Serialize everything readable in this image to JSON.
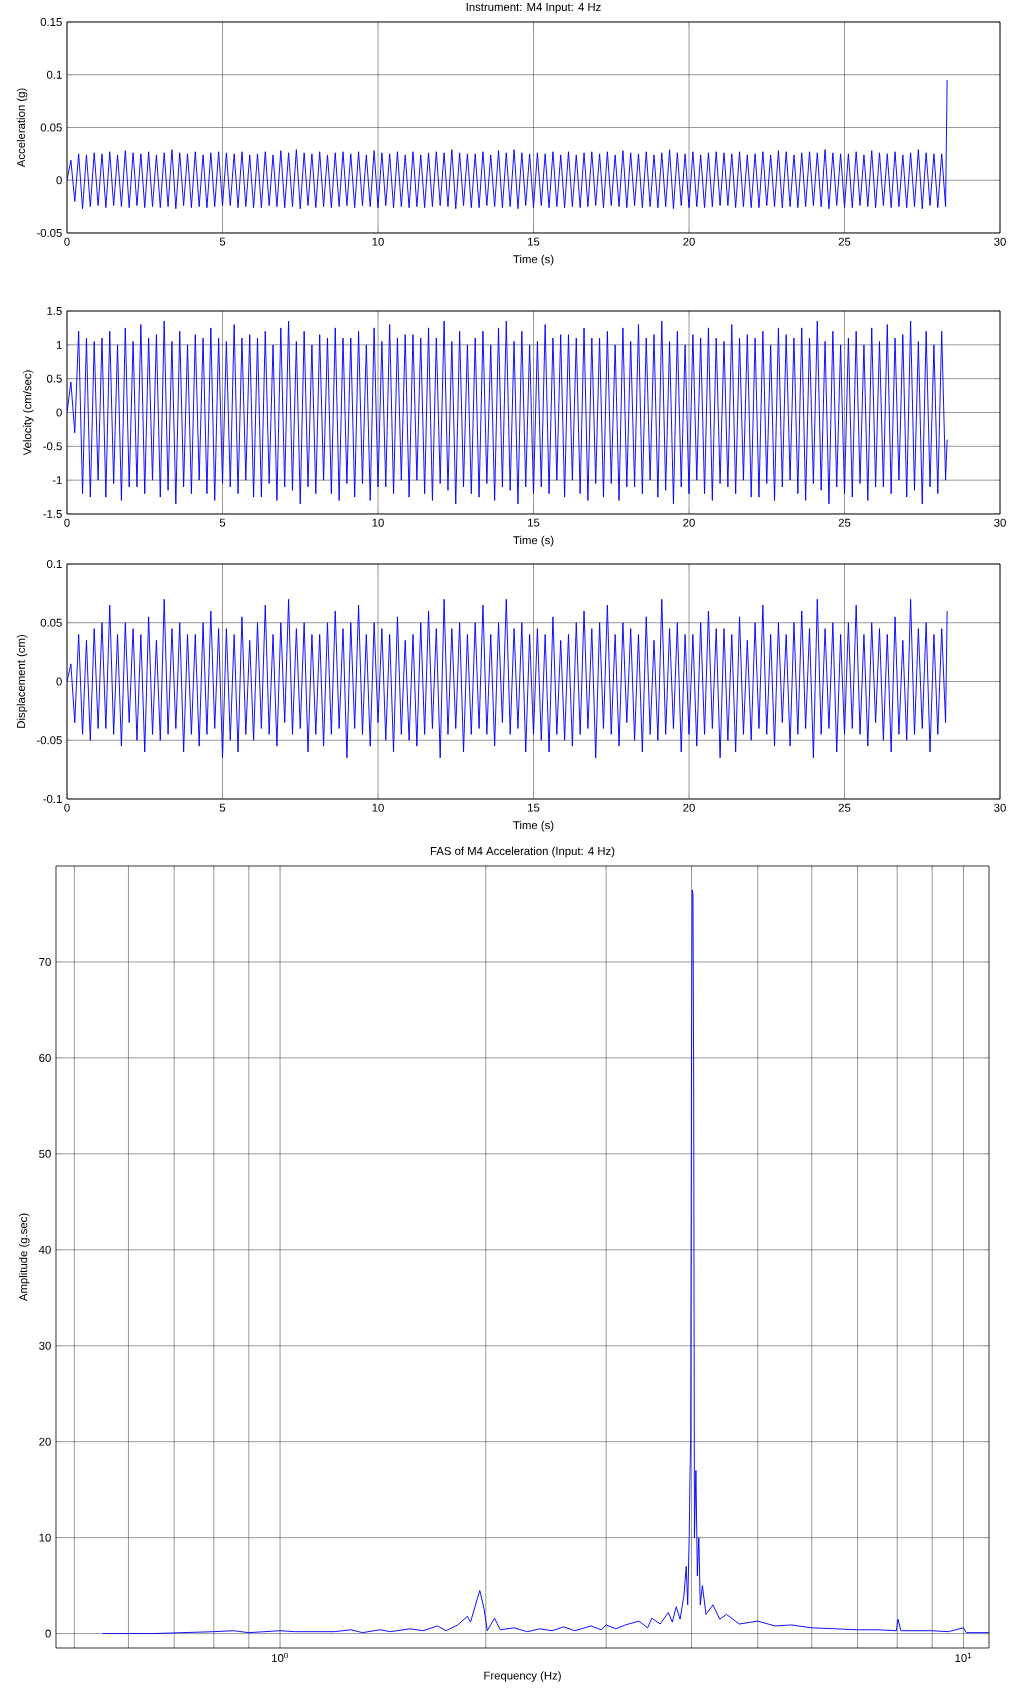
{
  "chart_data": [
    {
      "type": "line",
      "title": "Instrument: M4 Input: 4 Hz",
      "xlabel": "Time (s)",
      "ylabel": "Acceleration (g)",
      "xlim": [
        0,
        30
      ],
      "ylim": [
        -0.05,
        0.15
      ],
      "xticks": [
        0,
        5,
        10,
        15,
        20,
        25,
        30
      ],
      "yticks": [
        -0.05,
        0,
        0.05,
        0.1,
        0.15
      ],
      "grid": true,
      "line_style": "solid",
      "x": [
        0,
        0.125,
        0.25,
        0.375,
        0.5,
        0.625,
        0.75,
        0.875,
        1,
        1.125,
        1.25,
        1.375,
        1.5,
        1.625,
        1.75,
        1.875,
        2,
        2.125,
        2.25,
        2.375,
        2.5,
        2.625,
        2.75,
        2.875,
        3,
        3.125,
        3.25,
        3.375,
        3.5,
        3.625,
        3.75,
        3.875,
        4,
        4.125,
        4.25,
        4.375,
        4.5,
        4.625,
        4.75,
        4.875,
        5,
        5.125,
        5.25,
        5.375,
        5.5,
        5.625,
        5.75,
        5.875,
        6,
        6.125,
        6.25,
        6.375,
        6.5,
        6.625,
        6.75,
        6.875,
        7,
        7.125,
        7.25,
        7.375,
        7.5,
        7.625,
        7.75,
        7.875,
        8,
        8.125,
        8.25,
        8.375,
        8.5,
        8.625,
        8.75,
        8.875,
        9,
        9.125,
        9.25,
        9.375,
        9.5,
        9.625,
        9.75,
        9.875,
        10,
        10.125,
        10.25,
        10.375,
        10.5,
        10.625,
        10.75,
        10.875,
        11,
        11.125,
        11.25,
        11.375,
        11.5,
        11.625,
        11.75,
        11.875,
        12,
        12.125,
        12.25,
        12.375,
        12.5,
        12.625,
        12.75,
        12.875,
        13,
        13.125,
        13.25,
        13.375,
        13.5,
        13.625,
        13.75,
        13.875,
        14,
        14.125,
        14.25,
        14.375,
        14.5,
        14.625,
        14.75,
        14.875,
        15,
        15.125,
        15.25,
        15.375,
        15.5,
        15.625,
        15.75,
        15.875,
        16,
        16.125,
        16.25,
        16.375,
        16.5,
        16.625,
        16.75,
        16.875,
        17,
        17.125,
        17.25,
        17.375,
        17.5,
        17.625,
        17.75,
        17.875,
        18,
        18.125,
        18.25,
        18.375,
        18.5,
        18.625,
        18.75,
        18.875,
        19,
        19.125,
        19.25,
        19.375,
        19.5,
        19.625,
        19.75,
        19.875,
        20,
        20.125,
        20.25,
        20.375,
        20.5,
        20.625,
        20.75,
        20.875,
        21,
        21.125,
        21.25,
        21.375,
        21.5,
        21.625,
        21.75,
        21.875,
        22,
        22.125,
        22.25,
        22.375,
        22.5,
        22.625,
        22.75,
        22.875,
        23,
        23.125,
        23.25,
        23.375,
        23.5,
        23.625,
        23.75,
        23.875,
        24,
        24.125,
        24.25,
        24.375,
        24.5,
        24.625,
        24.75,
        24.875,
        25,
        25.125,
        25.25,
        25.375,
        25.5,
        25.625,
        25.75,
        25.875,
        26,
        26.125,
        26.25,
        26.375,
        26.5,
        26.625,
        26.75,
        26.875,
        27,
        27.125,
        27.25,
        27.375,
        27.5,
        27.625,
        27.75,
        27.875,
        28,
        28.125,
        28.25,
        28.3
      ],
      "series": [
        {
          "color": "#0000ff",
          "values": [
            0,
            0.019,
            -0.02,
            0.025,
            -0.027,
            0.024,
            -0.025,
            0.026,
            -0.024,
            0.025,
            -0.026,
            0.027,
            -0.024,
            0.024,
            -0.025,
            0.028,
            -0.026,
            0.026,
            -0.024,
            0.025,
            -0.026,
            0.027,
            -0.025,
            0.024,
            -0.026,
            0.026,
            -0.025,
            0.029,
            -0.027,
            0.026,
            -0.024,
            0.025,
            -0.026,
            0.027,
            -0.025,
            0.024,
            -0.026,
            0.026,
            -0.025,
            0.027,
            -0.024,
            0.026,
            -0.024,
            0.025,
            -0.026,
            0.027,
            -0.025,
            0.024,
            -0.026,
            0.025,
            -0.026,
            0.027,
            -0.024,
            0.024,
            -0.025,
            0.028,
            -0.026,
            0.026,
            -0.025,
            0.029,
            -0.027,
            0.026,
            -0.024,
            0.025,
            -0.026,
            0.027,
            -0.025,
            0.024,
            -0.026,
            0.026,
            -0.025,
            0.027,
            -0.024,
            0.025,
            -0.026,
            0.027,
            -0.024,
            0.024,
            -0.025,
            0.028,
            -0.026,
            0.026,
            -0.024,
            0.025,
            -0.026,
            0.027,
            -0.025,
            0.024,
            -0.026,
            0.027,
            -0.025,
            0.024,
            -0.026,
            0.026,
            -0.025,
            0.027,
            -0.024,
            0.026,
            -0.025,
            0.029,
            -0.027,
            0.026,
            -0.024,
            0.025,
            -0.026,
            0.025,
            -0.026,
            0.027,
            -0.024,
            0.024,
            -0.025,
            0.028,
            -0.026,
            0.026,
            -0.025,
            0.029,
            -0.027,
            0.026,
            -0.024,
            0.025,
            -0.026,
            0.026,
            -0.024,
            0.025,
            -0.026,
            0.027,
            -0.025,
            0.024,
            -0.026,
            0.027,
            -0.025,
            0.024,
            -0.026,
            0.026,
            -0.025,
            0.027,
            -0.024,
            0.025,
            -0.026,
            0.027,
            -0.024,
            0.024,
            -0.025,
            0.028,
            -0.026,
            0.026,
            -0.024,
            0.025,
            -0.026,
            0.027,
            -0.025,
            0.024,
            -0.026,
            0.026,
            -0.025,
            0.029,
            -0.027,
            0.026,
            -0.024,
            0.025,
            -0.026,
            0.027,
            -0.025,
            0.024,
            -0.026,
            0.026,
            -0.025,
            0.027,
            -0.024,
            0.026,
            -0.024,
            0.025,
            -0.026,
            0.027,
            -0.025,
            0.024,
            -0.026,
            0.025,
            -0.026,
            0.027,
            -0.024,
            0.024,
            -0.025,
            0.028,
            -0.026,
            0.027,
            -0.025,
            0.024,
            -0.026,
            0.026,
            -0.025,
            0.027,
            -0.024,
            0.026,
            -0.025,
            0.029,
            -0.027,
            0.026,
            -0.024,
            0.025,
            -0.026,
            0.025,
            -0.026,
            0.027,
            -0.024,
            0.024,
            -0.025,
            0.028,
            -0.026,
            0.026,
            -0.024,
            0.025,
            -0.026,
            0.027,
            -0.025,
            0.024,
            -0.026,
            0.026,
            -0.025,
            0.029,
            -0.027,
            0.026,
            -0.024,
            0.025,
            -0.026,
            0.025,
            -0.025,
            0.095
          ]
        }
      ]
    },
    {
      "type": "line",
      "xlabel": "Time (s)",
      "ylabel": "Velocity (cm/sec)",
      "xlim": [
        0,
        30
      ],
      "ylim": [
        -1.5,
        1.5
      ],
      "xticks": [
        0,
        5,
        10,
        15,
        20,
        25,
        30
      ],
      "yticks": [
        -1.5,
        -1,
        -0.5,
        0,
        0.5,
        1,
        1.5
      ],
      "grid": true,
      "line_style": "solid",
      "x": [
        0,
        0.125,
        0.25,
        0.375,
        0.5,
        0.625,
        0.75,
        0.875,
        1,
        1.125,
        1.25,
        1.375,
        1.5,
        1.625,
        1.75,
        1.875,
        2,
        2.125,
        2.25,
        2.375,
        2.5,
        2.625,
        2.75,
        2.875,
        3,
        3.125,
        3.25,
        3.375,
        3.5,
        3.625,
        3.75,
        3.875,
        4,
        4.125,
        4.25,
        4.375,
        4.5,
        4.625,
        4.75,
        4.875,
        5,
        5.125,
        5.25,
        5.375,
        5.5,
        5.625,
        5.75,
        5.875,
        6,
        6.125,
        6.25,
        6.375,
        6.5,
        6.625,
        6.75,
        6.875,
        7,
        7.125,
        7.25,
        7.375,
        7.5,
        7.625,
        7.75,
        7.875,
        8,
        8.125,
        8.25,
        8.375,
        8.5,
        8.625,
        8.75,
        8.875,
        9,
        9.125,
        9.25,
        9.375,
        9.5,
        9.625,
        9.75,
        9.875,
        10,
        10.125,
        10.25,
        10.375,
        10.5,
        10.625,
        10.75,
        10.875,
        11,
        11.125,
        11.25,
        11.375,
        11.5,
        11.625,
        11.75,
        11.875,
        12,
        12.125,
        12.25,
        12.375,
        12.5,
        12.625,
        12.75,
        12.875,
        13,
        13.125,
        13.25,
        13.375,
        13.5,
        13.625,
        13.75,
        13.875,
        14,
        14.125,
        14.25,
        14.375,
        14.5,
        14.625,
        14.75,
        14.875,
        15,
        15.125,
        15.25,
        15.375,
        15.5,
        15.625,
        15.75,
        15.875,
        16,
        16.125,
        16.25,
        16.375,
        16.5,
        16.625,
        16.75,
        16.875,
        17,
        17.125,
        17.25,
        17.375,
        17.5,
        17.625,
        17.75,
        17.875,
        18,
        18.125,
        18.25,
        18.375,
        18.5,
        18.625,
        18.75,
        18.875,
        19,
        19.125,
        19.25,
        19.375,
        19.5,
        19.625,
        19.75,
        19.875,
        20,
        20.125,
        20.25,
        20.375,
        20.5,
        20.625,
        20.75,
        20.875,
        21,
        21.125,
        21.25,
        21.375,
        21.5,
        21.625,
        21.75,
        21.875,
        22,
        22.125,
        22.25,
        22.375,
        22.5,
        22.625,
        22.75,
        22.875,
        23,
        23.125,
        23.25,
        23.375,
        23.5,
        23.625,
        23.75,
        23.875,
        24,
        24.125,
        24.25,
        24.375,
        24.5,
        24.625,
        24.75,
        24.875,
        25,
        25.125,
        25.25,
        25.375,
        25.5,
        25.625,
        25.75,
        25.875,
        26,
        26.125,
        26.25,
        26.375,
        26.5,
        26.625,
        26.75,
        26.875,
        27,
        27.125,
        27.25,
        27.375,
        27.5,
        27.625,
        27.75,
        27.875,
        28,
        28.125,
        28.25,
        28.3
      ],
      "series": [
        {
          "color": "#0000ff",
          "values": [
            0,
            0.45,
            -0.3,
            1.2,
            -1.2,
            1.1,
            -1.25,
            1.05,
            -1,
            1.1,
            -1.25,
            1.2,
            -1.05,
            1,
            -1.3,
            1.25,
            -1.1,
            1.05,
            -1.1,
            1.3,
            -1.2,
            1.1,
            -1,
            1.15,
            -1.25,
            1.35,
            -1.15,
            1.05,
            -1.35,
            1.2,
            -1.1,
            1,
            -1.2,
            1.15,
            -1,
            1.1,
            -1.2,
            1.25,
            -1.3,
            1.1,
            -1.05,
            1.05,
            -1.1,
            1.3,
            -1.2,
            1.1,
            -1,
            1.15,
            -1.25,
            1.1,
            -1.25,
            1.2,
            -1.05,
            1,
            -1.3,
            1.25,
            -1.1,
            1.35,
            -1.15,
            1.05,
            -1.35,
            1.2,
            -1.1,
            1,
            -1.2,
            1.15,
            -1,
            1.1,
            -1.2,
            1.25,
            -1.3,
            1.1,
            -1.05,
            1.1,
            -1.25,
            1.2,
            -1.05,
            1,
            -1.3,
            1.25,
            -1.1,
            1.05,
            -1.1,
            1.3,
            -1.2,
            1.1,
            -1,
            1.15,
            -1.25,
            1.15,
            -1,
            1.1,
            -1.2,
            1.25,
            -1.3,
            1.1,
            -1.05,
            1.35,
            -1.15,
            1.05,
            -1.35,
            1.2,
            -1.1,
            1,
            -1.2,
            1.1,
            -1.25,
            1.2,
            -1.05,
            1,
            -1.3,
            1.25,
            -1.1,
            1.35,
            -1.15,
            1.05,
            -1.35,
            1.2,
            -1.1,
            1,
            -1.2,
            1.05,
            -1.1,
            1.3,
            -1.2,
            1.1,
            -1,
            1.15,
            -1.25,
            1.15,
            -1,
            1.1,
            -1.2,
            1.25,
            -1.3,
            1.1,
            -1.05,
            1.1,
            -1.25,
            1.2,
            -1.05,
            1,
            -1.3,
            1.25,
            -1.1,
            1.05,
            -1.1,
            1.3,
            -1.2,
            1.1,
            -1,
            1.15,
            -1.25,
            1.35,
            -1.15,
            1.05,
            -1.35,
            1.2,
            -1.1,
            1,
            -1.2,
            1.15,
            -1,
            1.1,
            -1.2,
            1.25,
            -1.3,
            1.1,
            -1.05,
            1.05,
            -1.1,
            1.3,
            -1.2,
            1.1,
            -1,
            1.15,
            -1.25,
            1.1,
            -1.25,
            1.2,
            -1.05,
            1,
            -1.3,
            1.25,
            -1.1,
            1.15,
            -1,
            1.1,
            -1.2,
            1.25,
            -1.3,
            1.1,
            -1.05,
            1.35,
            -1.15,
            1.05,
            -1.35,
            1.2,
            -1.1,
            1,
            -1.2,
            1.1,
            -1.25,
            1.2,
            -1.05,
            1,
            -1.3,
            1.25,
            -1.1,
            1.05,
            -1.1,
            1.3,
            -1.2,
            1.1,
            -1,
            1.15,
            -1.25,
            1.35,
            -1.15,
            1.05,
            -1.35,
            1.2,
            -1.1,
            1,
            -1.2,
            1.2,
            -1,
            -0.4
          ]
        }
      ]
    },
    {
      "type": "line",
      "xlabel": "Time (s)",
      "ylabel": "Displacement (cm)",
      "xlim": [
        0,
        30
      ],
      "ylim": [
        -0.1,
        0.1
      ],
      "xticks": [
        0,
        5,
        10,
        15,
        20,
        25,
        30
      ],
      "yticks": [
        -0.1,
        -0.05,
        0,
        0.05,
        0.1
      ],
      "grid": true,
      "line_style": "solid",
      "x": [
        0,
        0.125,
        0.25,
        0.375,
        0.5,
        0.625,
        0.75,
        0.875,
        1,
        1.125,
        1.25,
        1.375,
        1.5,
        1.625,
        1.75,
        1.875,
        2,
        2.125,
        2.25,
        2.375,
        2.5,
        2.625,
        2.75,
        2.875,
        3,
        3.125,
        3.25,
        3.375,
        3.5,
        3.625,
        3.75,
        3.875,
        4,
        4.125,
        4.25,
        4.375,
        4.5,
        4.625,
        4.75,
        4.875,
        5,
        5.125,
        5.25,
        5.375,
        5.5,
        5.625,
        5.75,
        5.875,
        6,
        6.125,
        6.25,
        6.375,
        6.5,
        6.625,
        6.75,
        6.875,
        7,
        7.125,
        7.25,
        7.375,
        7.5,
        7.625,
        7.75,
        7.875,
        8,
        8.125,
        8.25,
        8.375,
        8.5,
        8.625,
        8.75,
        8.875,
        9,
        9.125,
        9.25,
        9.375,
        9.5,
        9.625,
        9.75,
        9.875,
        10,
        10.125,
        10.25,
        10.375,
        10.5,
        10.625,
        10.75,
        10.875,
        11,
        11.125,
        11.25,
        11.375,
        11.5,
        11.625,
        11.75,
        11.875,
        12,
        12.125,
        12.25,
        12.375,
        12.5,
        12.625,
        12.75,
        12.875,
        13,
        13.125,
        13.25,
        13.375,
        13.5,
        13.625,
        13.75,
        13.875,
        14,
        14.125,
        14.25,
        14.375,
        14.5,
        14.625,
        14.75,
        14.875,
        15,
        15.125,
        15.25,
        15.375,
        15.5,
        15.625,
        15.75,
        15.875,
        16,
        16.125,
        16.25,
        16.375,
        16.5,
        16.625,
        16.75,
        16.875,
        17,
        17.125,
        17.25,
        17.375,
        17.5,
        17.625,
        17.75,
        17.875,
        18,
        18.125,
        18.25,
        18.375,
        18.5,
        18.625,
        18.75,
        18.875,
        19,
        19.125,
        19.25,
        19.375,
        19.5,
        19.625,
        19.75,
        19.875,
        20,
        20.125,
        20.25,
        20.375,
        20.5,
        20.625,
        20.75,
        20.875,
        21,
        21.125,
        21.25,
        21.375,
        21.5,
        21.625,
        21.75,
        21.875,
        22,
        22.125,
        22.25,
        22.375,
        22.5,
        22.625,
        22.75,
        22.875,
        23,
        23.125,
        23.25,
        23.375,
        23.5,
        23.625,
        23.75,
        23.875,
        24,
        24.125,
        24.25,
        24.375,
        24.5,
        24.625,
        24.75,
        24.875,
        25,
        25.125,
        25.25,
        25.375,
        25.5,
        25.625,
        25.75,
        25.875,
        26,
        26.125,
        26.25,
        26.375,
        26.5,
        26.625,
        26.75,
        26.875,
        27,
        27.125,
        27.25,
        27.375,
        27.5,
        27.625,
        27.75,
        27.875,
        28,
        28.125,
        28.25,
        28.3
      ],
      "series": [
        {
          "color": "#0000ff",
          "values": [
            0,
            0.015,
            -0.035,
            0.04,
            -0.045,
            0.035,
            -0.05,
            0.045,
            -0.04,
            0.05,
            -0.04,
            0.065,
            -0.045,
            0.04,
            -0.055,
            0.05,
            -0.035,
            0.045,
            -0.05,
            0.04,
            -0.06,
            0.055,
            -0.045,
            0.035,
            -0.05,
            0.07,
            -0.045,
            0.045,
            -0.04,
            0.05,
            -0.06,
            0.04,
            -0.045,
            0.04,
            -0.055,
            0.05,
            -0.045,
            0.06,
            -0.04,
            0.045,
            -0.065,
            0.045,
            -0.05,
            0.04,
            -0.06,
            0.055,
            -0.045,
            0.035,
            -0.05,
            0.05,
            -0.04,
            0.065,
            -0.045,
            0.04,
            -0.055,
            0.05,
            -0.035,
            0.07,
            -0.045,
            0.045,
            -0.04,
            0.05,
            -0.06,
            0.04,
            -0.045,
            0.04,
            -0.055,
            0.05,
            -0.045,
            0.06,
            -0.04,
            0.045,
            -0.065,
            0.05,
            -0.04,
            0.065,
            -0.045,
            0.04,
            -0.055,
            0.05,
            -0.035,
            0.045,
            -0.05,
            0.04,
            -0.06,
            0.055,
            -0.045,
            0.035,
            -0.05,
            0.04,
            -0.055,
            0.05,
            -0.045,
            0.06,
            -0.04,
            0.045,
            -0.065,
            0.07,
            -0.045,
            0.045,
            -0.04,
            0.05,
            -0.06,
            0.04,
            -0.045,
            0.05,
            -0.04,
            0.065,
            -0.045,
            0.04,
            -0.055,
            0.05,
            -0.035,
            0.07,
            -0.045,
            0.045,
            -0.04,
            0.05,
            -0.06,
            0.04,
            -0.045,
            0.045,
            -0.05,
            0.04,
            -0.06,
            0.055,
            -0.045,
            0.035,
            -0.05,
            0.04,
            -0.055,
            0.05,
            -0.045,
            0.06,
            -0.04,
            0.045,
            -0.065,
            0.05,
            -0.04,
            0.065,
            -0.045,
            0.04,
            -0.055,
            0.05,
            -0.035,
            0.045,
            -0.05,
            0.04,
            -0.06,
            0.055,
            -0.045,
            0.035,
            -0.05,
            0.07,
            -0.045,
            0.045,
            -0.04,
            0.05,
            -0.06,
            0.04,
            -0.045,
            0.04,
            -0.055,
            0.05,
            -0.045,
            0.06,
            -0.04,
            0.045,
            -0.065,
            0.045,
            -0.05,
            0.04,
            -0.06,
            0.055,
            -0.045,
            0.035,
            -0.05,
            0.05,
            -0.04,
            0.065,
            -0.045,
            0.04,
            -0.055,
            0.05,
            -0.035,
            0.04,
            -0.055,
            0.05,
            -0.045,
            0.06,
            -0.04,
            0.045,
            -0.065,
            0.07,
            -0.045,
            0.045,
            -0.04,
            0.05,
            -0.06,
            0.04,
            -0.045,
            0.05,
            -0.04,
            0.065,
            -0.045,
            0.04,
            -0.055,
            0.05,
            -0.035,
            0.045,
            -0.05,
            0.04,
            -0.06,
            0.055,
            -0.045,
            0.035,
            -0.05,
            0.07,
            -0.045,
            0.045,
            -0.04,
            0.05,
            -0.06,
            0.04,
            -0.045,
            0.045,
            -0.035,
            0.06
          ]
        }
      ]
    },
    {
      "type": "line",
      "title": "FAS of M4 Acceleration (Input: 4 Hz)",
      "xlabel": "Frequency (Hz)",
      "ylabel": "Amplitude (g.sec)",
      "log": "x",
      "xlim": [
        0.47,
        10.9
      ],
      "ylim": [
        -1.5,
        80
      ],
      "xticks": [
        {
          "value": 1,
          "label": "10$^{0}$"
        },
        {
          "value": 10,
          "label": "10$^{1}$"
        }
      ],
      "yticks": [
        0,
        10,
        20,
        30,
        40,
        50,
        60,
        70
      ],
      "grid": true,
      "line_style": "solid",
      "x": [
        0.55,
        0.65,
        0.8,
        0.855,
        0.9,
        1.0,
        1.05,
        1.2,
        1.27,
        1.32,
        1.4,
        1.45,
        1.55,
        1.62,
        1.7,
        1.75,
        1.82,
        1.88,
        1.9,
        1.96,
        1.99,
        2.01,
        2.06,
        2.1,
        2.2,
        2.3,
        2.4,
        2.5,
        2.6,
        2.7,
        2.85,
        2.95,
        3.0,
        3.1,
        3.2,
        3.35,
        3.45,
        3.5,
        3.6,
        3.7,
        3.75,
        3.8,
        3.85,
        3.9,
        3.93,
        3.95,
        3.97,
        3.98,
        3.99,
        4.0,
        4.01,
        4.02,
        4.03,
        4.04,
        4.06,
        4.08,
        4.1,
        4.12,
        4.15,
        4.2,
        4.3,
        4.4,
        4.5,
        4.7,
        5.0,
        5.3,
        5.6,
        6.0,
        6.5,
        7.0,
        7.5,
        7.98,
        8.02,
        8.1,
        9.0,
        9.5,
        10.0,
        10.1,
        10.9
      ],
      "series": [
        {
          "color": "#0000ff",
          "values": [
            0,
            0,
            0.2,
            0.3,
            0.1,
            0.3,
            0.2,
            0.2,
            0.4,
            0.1,
            0.4,
            0.2,
            0.5,
            0.3,
            0.8,
            0.3,
            0.9,
            1.8,
            1.2,
            4.5,
            2.5,
            0.3,
            1.6,
            0.4,
            0.6,
            0.2,
            0.5,
            0.3,
            0.7,
            0.3,
            0.8,
            0.4,
            0.9,
            0.5,
            0.9,
            1.3,
            0.6,
            1.6,
            1,
            2.2,
            1.2,
            2.8,
            1.5,
            4,
            7,
            3,
            10,
            16,
            20.5,
            60,
            77.5,
            77,
            56,
            10,
            17,
            6,
            10,
            3,
            5,
            2,
            3,
            1.5,
            2,
            1,
            1.3,
            0.8,
            0.9,
            0.6,
            0.5,
            0.4,
            0.4,
            0.3,
            1.5,
            0.3,
            0.3,
            0.2,
            0.6,
            0.1,
            0.1
          ]
        }
      ]
    }
  ]
}
